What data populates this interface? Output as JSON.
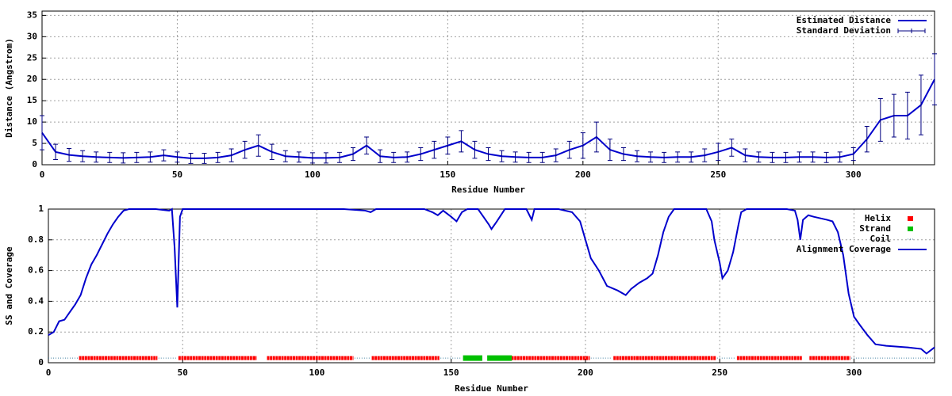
{
  "chart_data": [
    {
      "type": "line",
      "xlabel": "Residue Number",
      "ylabel": "Distance (Angstrom)",
      "xlim": [
        0,
        330
      ],
      "xticks": [
        0,
        50,
        100,
        150,
        200,
        250,
        300
      ],
      "ylim": [
        0,
        36
      ],
      "yticks": [
        0,
        5,
        10,
        15,
        20,
        25,
        30,
        35
      ],
      "grid": true,
      "legend": "top-right",
      "x": [
        0,
        5,
        10,
        15,
        20,
        25,
        30,
        35,
        40,
        45,
        50,
        55,
        60,
        65,
        70,
        75,
        80,
        85,
        90,
        95,
        100,
        105,
        110,
        115,
        120,
        125,
        130,
        135,
        140,
        145,
        150,
        155,
        160,
        165,
        170,
        175,
        180,
        185,
        190,
        195,
        200,
        205,
        210,
        215,
        220,
        225,
        230,
        235,
        240,
        245,
        250,
        255,
        260,
        265,
        270,
        275,
        280,
        285,
        290,
        295,
        300,
        305,
        310,
        315,
        320,
        325,
        330
      ],
      "series": [
        {
          "name": "Estimated Distance",
          "color": "#0000cc",
          "values": [
            7.5,
            3,
            2.3,
            2,
            1.8,
            1.7,
            1.6,
            1.7,
            1.8,
            2.2,
            1.8,
            1.5,
            1.5,
            1.7,
            2.2,
            3.5,
            4.5,
            3,
            2,
            1.8,
            1.6,
            1.6,
            1.7,
            2.5,
            4.5,
            2,
            1.7,
            1.8,
            2.5,
            3.5,
            4.5,
            5.5,
            3.5,
            2.5,
            2,
            1.8,
            1.7,
            1.7,
            2.2,
            3.5,
            4.5,
            6.5,
            3.5,
            2.5,
            2,
            1.8,
            1.7,
            1.8,
            1.8,
            2.2,
            3,
            4,
            2.2,
            1.8,
            1.7,
            1.7,
            1.8,
            1.8,
            1.7,
            1.8,
            2.5,
            6,
            10.5,
            11.5,
            11.5,
            14,
            20
          ]
        },
        {
          "name": "Standard Deviation",
          "color": "#000080",
          "values": [
            4,
            1.8,
            1.5,
            1.3,
            1.2,
            1.2,
            1.2,
            1.2,
            1.2,
            1.3,
            1.2,
            1.2,
            1.2,
            1.2,
            1.5,
            2,
            2.5,
            1.8,
            1.3,
            1.2,
            1.2,
            1.2,
            1.2,
            1.5,
            2,
            1.5,
            1.2,
            1.2,
            1.5,
            2,
            2,
            2.5,
            2,
            1.5,
            1.3,
            1.2,
            1.2,
            1.2,
            1.5,
            2,
            3,
            3.5,
            2.5,
            1.5,
            1.3,
            1.2,
            1.2,
            1.2,
            1.2,
            1.5,
            2,
            2,
            1.5,
            1.2,
            1.2,
            1.2,
            1.2,
            1.2,
            1.2,
            1.2,
            1.5,
            3,
            5,
            5,
            5.5,
            7,
            6
          ]
        }
      ]
    },
    {
      "type": "line",
      "xlabel": "Residue Number",
      "ylabel": "SS and Coverage",
      "xlim": [
        0,
        330
      ],
      "xticks": [
        0,
        50,
        100,
        150,
        200,
        250,
        300
      ],
      "ylim": [
        0,
        1
      ],
      "yticks": [
        0,
        0.2,
        0.4,
        0.6,
        0.8,
        1
      ],
      "grid": true,
      "legend": "top-right",
      "x": [
        0,
        2,
        4,
        6,
        8,
        10,
        12,
        14,
        16,
        18,
        20,
        22,
        24,
        26,
        28,
        30,
        40,
        45,
        46,
        47,
        48,
        49,
        50,
        100,
        110,
        118,
        120,
        122,
        140,
        143,
        145,
        147,
        150,
        152,
        154,
        156,
        160,
        162,
        164,
        165,
        167,
        170,
        178,
        180,
        181,
        190,
        195,
        198,
        200,
        202,
        205,
        208,
        212,
        215,
        217,
        220,
        223,
        225,
        227,
        229,
        231,
        233,
        245,
        247,
        248,
        250,
        251,
        253,
        255,
        257,
        258,
        260,
        270,
        275,
        278,
        279,
        280,
        281,
        283,
        285,
        290,
        292,
        294,
        296,
        298,
        300,
        302,
        305,
        308,
        312,
        320,
        325,
        327,
        330
      ],
      "series": [
        {
          "name": "Helix",
          "color": "#ff0000",
          "marker": "star",
          "level": 0.03,
          "segments": [
            [
              12,
              40
            ],
            [
              49,
              76
            ],
            [
              77,
              77
            ],
            [
              82,
              113
            ],
            [
              121,
              145
            ],
            [
              173,
              201
            ],
            [
              211,
              248
            ],
            [
              257,
              280
            ],
            [
              284,
              298
            ]
          ]
        },
        {
          "name": "Strand",
          "color": "#00c000",
          "marker": "square",
          "level": 0.03,
          "segments": [
            [
              155,
              161
            ],
            [
              164,
              172
            ]
          ]
        },
        {
          "name": "Coil",
          "color": "#4080a0",
          "marker": "dot",
          "level": 0.03,
          "segments": [
            [
              0,
              11
            ],
            [
              41,
              48
            ],
            [
              114,
              120
            ],
            [
              146,
              154
            ],
            [
              202,
              210
            ],
            [
              249,
              256
            ],
            [
              299,
              330
            ]
          ]
        },
        {
          "name": "Alignment Coverage",
          "color": "#0000cc",
          "values": [
            0.18,
            0.2,
            0.27,
            0.28,
            0.33,
            0.38,
            0.44,
            0.55,
            0.64,
            0.7,
            0.77,
            0.84,
            0.9,
            0.95,
            0.99,
            1,
            1,
            0.99,
            1,
            0.75,
            0.36,
            0.95,
            1,
            1,
            1,
            0.99,
            0.98,
            1,
            1,
            0.98,
            0.96,
            0.99,
            0.95,
            0.92,
            0.98,
            1,
            1,
            0.95,
            0.9,
            0.87,
            0.92,
            1,
            1,
            0.93,
            1,
            1,
            0.98,
            0.92,
            0.8,
            0.68,
            0.6,
            0.5,
            0.47,
            0.44,
            0.48,
            0.52,
            0.55,
            0.58,
            0.7,
            0.85,
            0.95,
            1,
            1,
            0.92,
            0.8,
            0.65,
            0.55,
            0.6,
            0.72,
            0.9,
            0.98,
            1,
            1,
            1,
            0.99,
            0.93,
            0.8,
            0.93,
            0.96,
            0.95,
            0.93,
            0.92,
            0.85,
            0.7,
            0.45,
            0.3,
            0.25,
            0.18,
            0.12,
            0.11,
            0.1,
            0.09,
            0.06,
            0.1
          ]
        }
      ]
    }
  ]
}
